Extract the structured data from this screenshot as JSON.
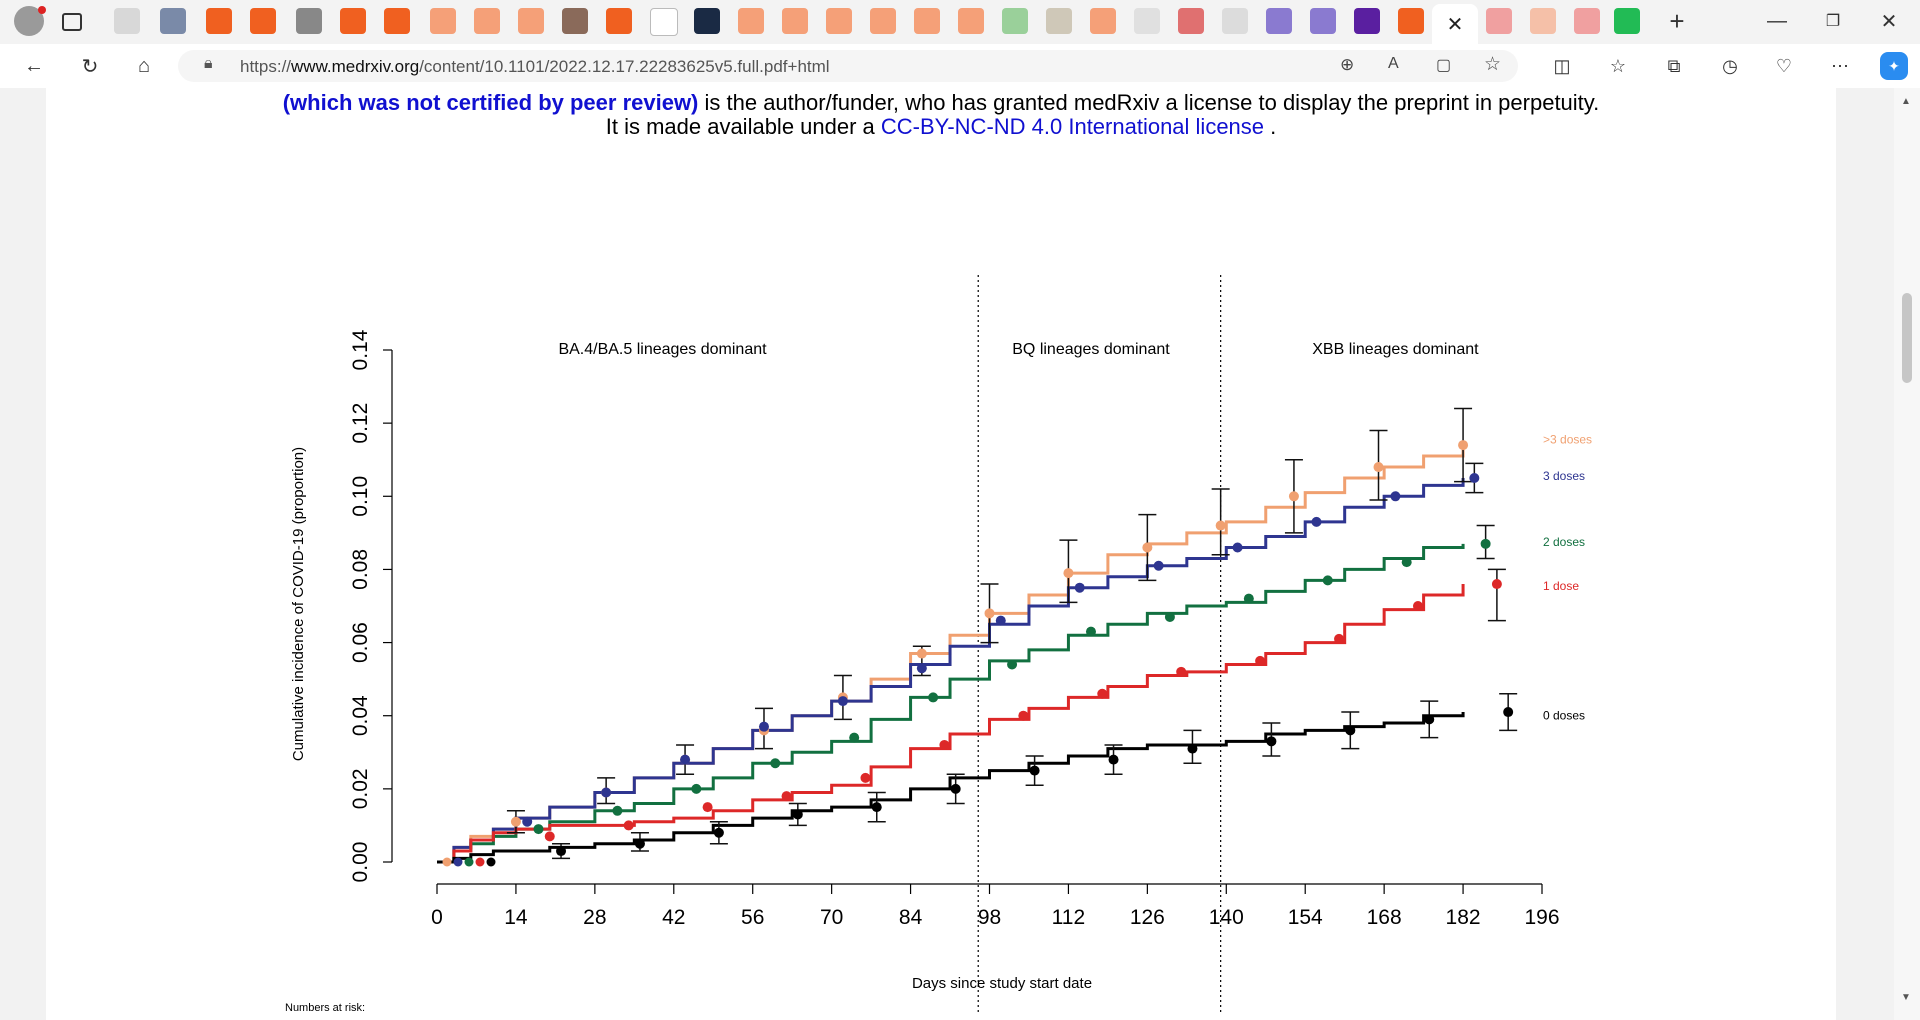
{
  "browser": {
    "url_prefix": "https://",
    "url_domain": "www.medrxiv.org",
    "url_path": "/content/10.1101/2022.12.17.22283625v5.full.pdf+html"
  },
  "document": {
    "line1_bold": "(which was not certified by peer review)",
    "line1_rest": " is the author/funder, who has granted medRxiv a license to display the preprint in perpetuity.",
    "line2_prefix": "It is made available under a ",
    "line2_link": "CC-BY-NC-ND 4.0 International license",
    "line2_suffix": " ."
  },
  "chart_data": {
    "type": "line",
    "xlabel": "Days since study start date",
    "ylabel": "Cumulative incidence of COVID-19 (proportion)",
    "x_ticks": [
      0,
      14,
      28,
      42,
      56,
      70,
      84,
      98,
      112,
      126,
      140,
      154,
      168,
      182,
      196
    ],
    "y_ticks": [
      "0.00",
      "0.02",
      "0.04",
      "0.06",
      "0.08",
      "0.10",
      "0.12",
      "0.14"
    ],
    "xlim": [
      0,
      196
    ],
    "ylim": [
      0,
      0.14
    ],
    "period_dividers": [
      96,
      139
    ],
    "period_labels": [
      {
        "label": "BA.4/BA.5 lineages dominant",
        "x": 40
      },
      {
        "label": "BQ lineages dominant",
        "x": 116
      },
      {
        "label": "XBB lineages dominant",
        "x": 170
      }
    ],
    "numbers_at_risk_label": "Numbers at risk:",
    "series": [
      {
        "name": ">3 doses",
        "color": "#f0a070",
        "label_y": 0.1155,
        "x": [
          0,
          3,
          6,
          10,
          14,
          20,
          28,
          35,
          42,
          49,
          56,
          63,
          70,
          77,
          84,
          91,
          98,
          105,
          112,
          119,
          126,
          133,
          140,
          147,
          154,
          161,
          168,
          175,
          182
        ],
        "y": [
          0,
          0.004,
          0.007,
          0.009,
          0.012,
          0.015,
          0.019,
          0.023,
          0.027,
          0.031,
          0.036,
          0.04,
          0.044,
          0.05,
          0.057,
          0.062,
          0.068,
          0.073,
          0.079,
          0.084,
          0.087,
          0.09,
          0.093,
          0.097,
          0.101,
          0.105,
          0.108,
          0.111,
          0.114
        ],
        "points": [
          {
            "x": 14,
            "y": 0.011
          },
          {
            "x": 30,
            "y": 0.019
          },
          {
            "x": 44,
            "y": 0.028
          },
          {
            "x": 58,
            "y": 0.036
          },
          {
            "x": 72,
            "y": 0.045
          },
          {
            "x": 86,
            "y": 0.057
          },
          {
            "x": 98,
            "y": 0.068
          },
          {
            "x": 112,
            "y": 0.079
          },
          {
            "x": 126,
            "y": 0.086
          },
          {
            "x": 139,
            "y": 0.092
          },
          {
            "x": 152,
            "y": 0.1
          },
          {
            "x": 167,
            "y": 0.108
          },
          {
            "x": 182,
            "y": 0.114
          }
        ],
        "error_bars": [
          {
            "x": 14,
            "lo": 0.008,
            "hi": 0.014
          },
          {
            "x": 30,
            "lo": 0.016,
            "hi": 0.023
          },
          {
            "x": 44,
            "lo": 0.024,
            "hi": 0.032
          },
          {
            "x": 58,
            "lo": 0.031,
            "hi": 0.042
          },
          {
            "x": 72,
            "lo": 0.039,
            "hi": 0.051
          },
          {
            "x": 86,
            "lo": 0.051,
            "hi": 0.059
          },
          {
            "x": 98,
            "lo": 0.06,
            "hi": 0.076
          },
          {
            "x": 112,
            "lo": 0.071,
            "hi": 0.088
          },
          {
            "x": 126,
            "lo": 0.077,
            "hi": 0.095
          },
          {
            "x": 139,
            "lo": 0.084,
            "hi": 0.102
          },
          {
            "x": 152,
            "lo": 0.09,
            "hi": 0.11
          },
          {
            "x": 167,
            "lo": 0.099,
            "hi": 0.118
          },
          {
            "x": 182,
            "lo": 0.104,
            "hi": 0.124
          }
        ]
      },
      {
        "name": "3 doses",
        "color": "#2e3590",
        "label_y": 0.1055,
        "x": [
          0,
          3,
          6,
          10,
          14,
          20,
          28,
          35,
          42,
          49,
          56,
          63,
          70,
          77,
          84,
          91,
          98,
          105,
          112,
          119,
          126,
          133,
          140,
          147,
          154,
          161,
          168,
          175,
          182
        ],
        "y": [
          0,
          0.004,
          0.006,
          0.009,
          0.012,
          0.015,
          0.019,
          0.023,
          0.027,
          0.031,
          0.036,
          0.04,
          0.044,
          0.048,
          0.054,
          0.059,
          0.065,
          0.07,
          0.075,
          0.078,
          0.081,
          0.083,
          0.086,
          0.089,
          0.093,
          0.097,
          0.1,
          0.103,
          0.105
        ],
        "points": [
          {
            "x": 16,
            "y": 0.011
          },
          {
            "x": 30,
            "y": 0.019
          },
          {
            "x": 44,
            "y": 0.028
          },
          {
            "x": 58,
            "y": 0.037
          },
          {
            "x": 72,
            "y": 0.044
          },
          {
            "x": 86,
            "y": 0.053
          },
          {
            "x": 100,
            "y": 0.066
          },
          {
            "x": 114,
            "y": 0.075
          },
          {
            "x": 128,
            "y": 0.081
          },
          {
            "x": 142,
            "y": 0.086
          },
          {
            "x": 156,
            "y": 0.093
          },
          {
            "x": 170,
            "y": 0.1
          },
          {
            "x": 184,
            "y": 0.105
          }
        ],
        "error_bars": [
          {
            "x": 184,
            "lo": 0.101,
            "hi": 0.109
          }
        ]
      },
      {
        "name": "2 doses",
        "color": "#127040",
        "label_y": 0.0875,
        "x": [
          0,
          3,
          6,
          10,
          14,
          20,
          28,
          35,
          42,
          49,
          56,
          63,
          70,
          77,
          84,
          91,
          98,
          105,
          112,
          119,
          126,
          133,
          140,
          147,
          154,
          161,
          168,
          175,
          182
        ],
        "y": [
          0,
          0.003,
          0.005,
          0.007,
          0.009,
          0.011,
          0.014,
          0.016,
          0.02,
          0.023,
          0.027,
          0.03,
          0.033,
          0.039,
          0.045,
          0.05,
          0.055,
          0.058,
          0.062,
          0.065,
          0.068,
          0.07,
          0.071,
          0.074,
          0.077,
          0.08,
          0.083,
          0.086,
          0.087
        ],
        "points": [
          {
            "x": 18,
            "y": 0.009
          },
          {
            "x": 32,
            "y": 0.014
          },
          {
            "x": 46,
            "y": 0.02
          },
          {
            "x": 60,
            "y": 0.027
          },
          {
            "x": 74,
            "y": 0.034
          },
          {
            "x": 88,
            "y": 0.045
          },
          {
            "x": 102,
            "y": 0.054
          },
          {
            "x": 116,
            "y": 0.063
          },
          {
            "x": 130,
            "y": 0.067
          },
          {
            "x": 144,
            "y": 0.072
          },
          {
            "x": 158,
            "y": 0.077
          },
          {
            "x": 172,
            "y": 0.082
          },
          {
            "x": 186,
            "y": 0.087
          }
        ],
        "error_bars": [
          {
            "x": 186,
            "lo": 0.083,
            "hi": 0.092
          }
        ]
      },
      {
        "name": "1 dose",
        "color": "#dd2828",
        "label_y": 0.0755,
        "x": [
          0,
          3,
          6,
          10,
          14,
          20,
          28,
          35,
          42,
          49,
          56,
          63,
          70,
          77,
          84,
          91,
          98,
          105,
          112,
          119,
          126,
          133,
          140,
          147,
          154,
          161,
          168,
          175,
          182
        ],
        "y": [
          0,
          0.003,
          0.006,
          0.008,
          0.009,
          0.01,
          0.01,
          0.011,
          0.012,
          0.014,
          0.017,
          0.019,
          0.021,
          0.026,
          0.031,
          0.035,
          0.039,
          0.042,
          0.045,
          0.048,
          0.051,
          0.052,
          0.054,
          0.057,
          0.06,
          0.065,
          0.069,
          0.073,
          0.076
        ],
        "points": [
          {
            "x": 20,
            "y": 0.007
          },
          {
            "x": 34,
            "y": 0.01
          },
          {
            "x": 48,
            "y": 0.015
          },
          {
            "x": 62,
            "y": 0.018
          },
          {
            "x": 76,
            "y": 0.023
          },
          {
            "x": 90,
            "y": 0.032
          },
          {
            "x": 104,
            "y": 0.04
          },
          {
            "x": 118,
            "y": 0.046
          },
          {
            "x": 132,
            "y": 0.052
          },
          {
            "x": 146,
            "y": 0.055
          },
          {
            "x": 160,
            "y": 0.061
          },
          {
            "x": 174,
            "y": 0.07
          },
          {
            "x": 188,
            "y": 0.076
          }
        ],
        "error_bars": [
          {
            "x": 188,
            "lo": 0.066,
            "hi": 0.08
          }
        ]
      },
      {
        "name": "0 doses",
        "color": "#000000",
        "label_y": 0.04,
        "x": [
          0,
          3,
          6,
          10,
          14,
          20,
          28,
          35,
          42,
          49,
          56,
          63,
          70,
          77,
          84,
          91,
          98,
          105,
          112,
          119,
          126,
          133,
          140,
          147,
          154,
          161,
          168,
          175,
          182
        ],
        "y": [
          0,
          0.001,
          0.002,
          0.003,
          0.003,
          0.004,
          0.005,
          0.006,
          0.008,
          0.01,
          0.012,
          0.014,
          0.015,
          0.017,
          0.02,
          0.023,
          0.025,
          0.027,
          0.029,
          0.031,
          0.032,
          0.032,
          0.033,
          0.035,
          0.036,
          0.037,
          0.038,
          0.04,
          0.041
        ],
        "points": [
          {
            "x": 22,
            "y": 0.003
          },
          {
            "x": 36,
            "y": 0.005
          },
          {
            "x": 50,
            "y": 0.008
          },
          {
            "x": 64,
            "y": 0.013
          },
          {
            "x": 78,
            "y": 0.015
          },
          {
            "x": 92,
            "y": 0.02
          },
          {
            "x": 106,
            "y": 0.025
          },
          {
            "x": 120,
            "y": 0.028
          },
          {
            "x": 134,
            "y": 0.031
          },
          {
            "x": 148,
            "y": 0.033
          },
          {
            "x": 162,
            "y": 0.036
          },
          {
            "x": 176,
            "y": 0.039
          },
          {
            "x": 190,
            "y": 0.041
          }
        ],
        "error_bars": [
          {
            "x": 22,
            "lo": 0.001,
            "hi": 0.005
          },
          {
            "x": 36,
            "lo": 0.003,
            "hi": 0.008
          },
          {
            "x": 50,
            "lo": 0.005,
            "hi": 0.011
          },
          {
            "x": 64,
            "lo": 0.01,
            "hi": 0.016
          },
          {
            "x": 78,
            "lo": 0.011,
            "hi": 0.019
          },
          {
            "x": 92,
            "lo": 0.016,
            "hi": 0.024
          },
          {
            "x": 106,
            "lo": 0.021,
            "hi": 0.029
          },
          {
            "x": 120,
            "lo": 0.024,
            "hi": 0.032
          },
          {
            "x": 134,
            "lo": 0.027,
            "hi": 0.036
          },
          {
            "x": 148,
            "lo": 0.029,
            "hi": 0.038
          },
          {
            "x": 162,
            "lo": 0.031,
            "hi": 0.041
          },
          {
            "x": 176,
            "lo": 0.034,
            "hi": 0.044
          },
          {
            "x": 190,
            "lo": 0.036,
            "hi": 0.046
          }
        ]
      }
    ]
  }
}
